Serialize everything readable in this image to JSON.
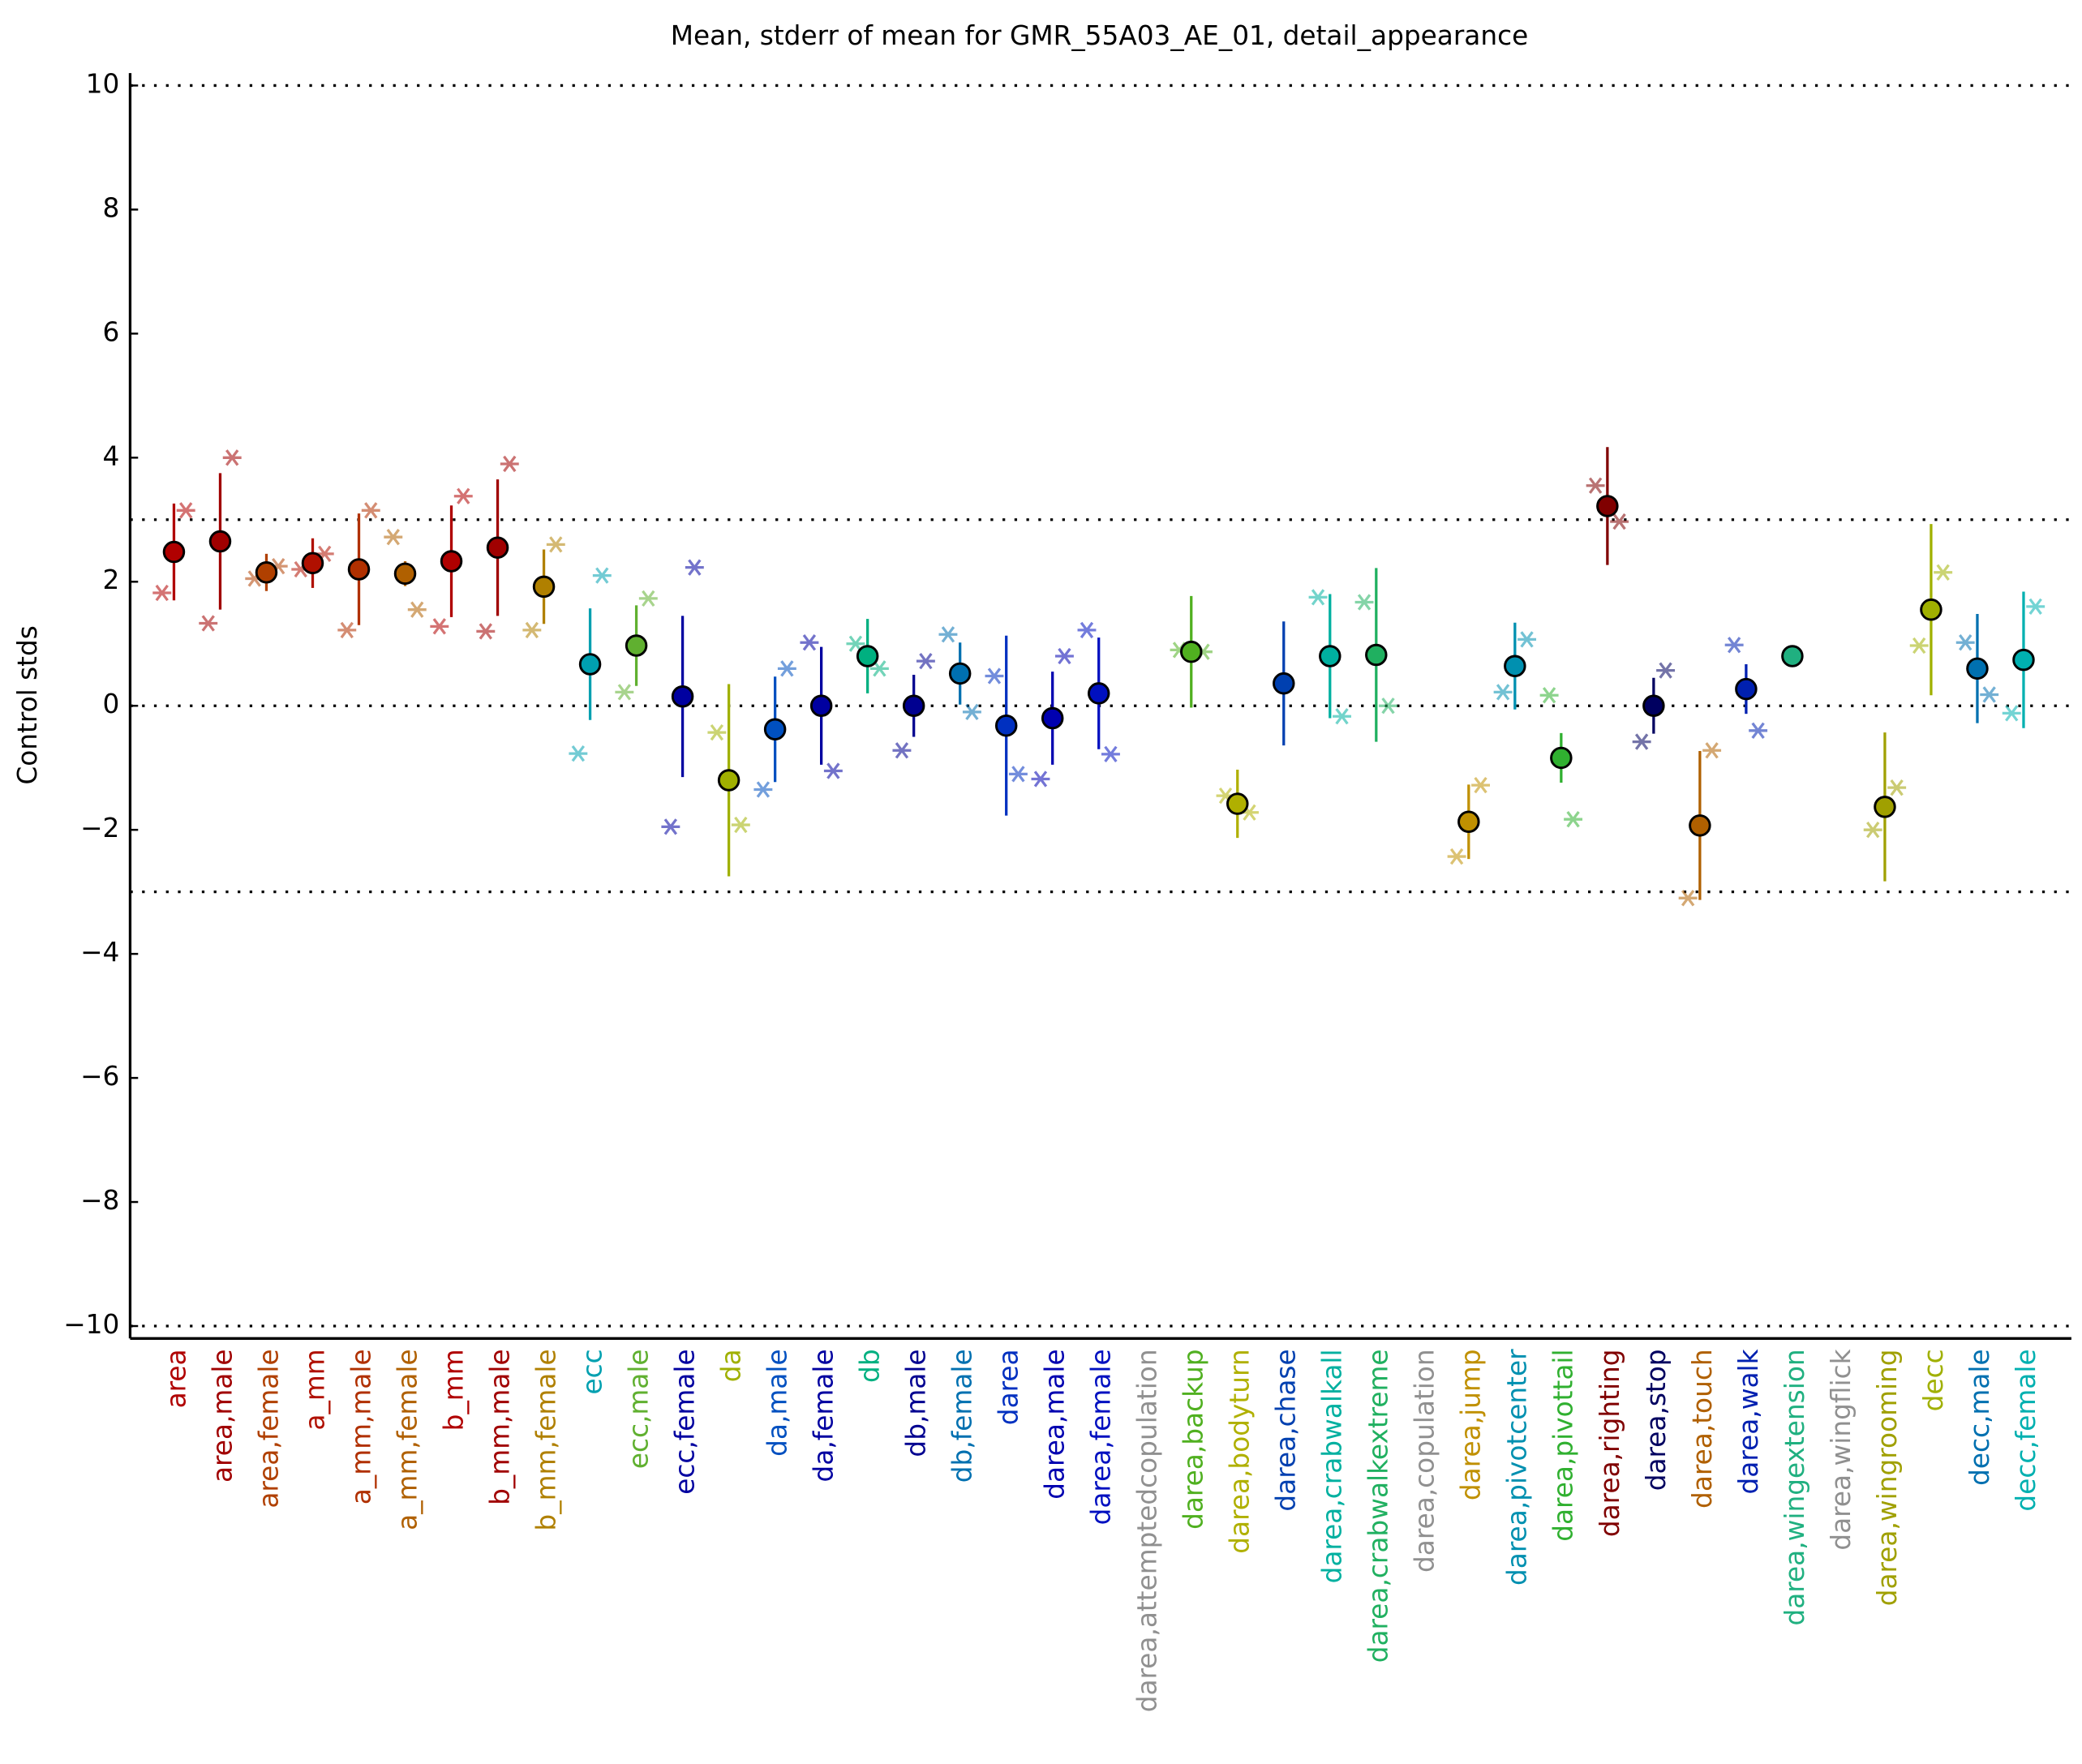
{
  "chart_data": {
    "type": "errorbar",
    "title": "Mean, stderr of mean for GMR_55A03_AE_01, detail_appearance",
    "ylabel": "Control stds",
    "categories": [
      "area",
      "area,male",
      "area,female",
      "a_mm",
      "a_mm,male",
      "a_mm,female",
      "b_mm",
      "b_mm,male",
      "b_mm,female",
      "ecc",
      "ecc,male",
      "ecc,female",
      "da",
      "da,male",
      "da,female",
      "db",
      "db,male",
      "db,female",
      "darea",
      "darea,male",
      "darea,female",
      "darea,attemptedcopulation",
      "darea,backup",
      "darea,bodyturn",
      "darea,chase",
      "darea,crabwalkall",
      "darea,crabwalkextreme",
      "darea,copulation",
      "darea,jump",
      "darea,pivotcenter",
      "darea,pivottail",
      "darea,righting",
      "darea,stop",
      "darea,touch",
      "darea,walk",
      "darea,wingextension",
      "darea,wingflick",
      "darea,wingrooming",
      "decc",
      "decc,male",
      "decc,female"
    ],
    "colors": [
      "#b00000",
      "#a00000",
      "#b04000",
      "#b01000",
      "#b03000",
      "#b06000",
      "#b00000",
      "#a00000",
      "#b08000",
      "#00a0b0",
      "#60b030",
      "#0000a0",
      "#a0b000",
      "#0050c0",
      "#0000a0",
      "#00b080",
      "#000090",
      "#0070b0",
      "#0030c0",
      "#0000b0",
      "#0010c0",
      "#909090",
      "#50b020",
      "#b0b000",
      "#0040b0",
      "#00b0a0",
      "#20b060",
      "#909090",
      "#c09000",
      "#0090b0",
      "#30b030",
      "#800000",
      "#000060",
      "#b06000",
      "#0020b0",
      "#20b080",
      "#909090",
      "#a0a000",
      "#a0b000",
      "#0070b0",
      "#00b0b0"
    ],
    "means": [
      2.48,
      2.65,
      2.15,
      2.3,
      2.2,
      2.13,
      2.33,
      2.55,
      1.92,
      0.67,
      0.97,
      0.15,
      -1.2,
      -0.38,
      0.0,
      0.8,
      0.0,
      0.52,
      -0.32,
      -0.2,
      0.2,
      null,
      0.87,
      -1.58,
      0.36,
      0.8,
      0.82,
      null,
      -1.87,
      0.64,
      -0.84,
      3.22,
      0.0,
      -1.93,
      0.27,
      0.8,
      null,
      -1.63,
      1.55,
      0.6,
      0.74
    ],
    "errors": [
      0.78,
      1.1,
      0.3,
      0.4,
      0.9,
      0.2,
      0.9,
      1.1,
      0.6,
      0.9,
      0.65,
      1.3,
      1.55,
      0.85,
      0.95,
      0.6,
      0.5,
      0.5,
      1.45,
      0.75,
      0.9,
      null,
      0.9,
      0.55,
      1.0,
      1.0,
      1.4,
      null,
      0.6,
      0.7,
      0.4,
      0.95,
      0.45,
      1.2,
      0.4,
      0,
      null,
      1.2,
      1.38,
      0.88,
      1.1
    ],
    "sub_left": [
      1.82,
      1.33,
      2.05,
      2.2,
      1.22,
      2.72,
      1.28,
      1.2,
      1.22,
      -0.77,
      0.22,
      -1.95,
      -0.43,
      -1.35,
      1.02,
      1.0,
      -0.72,
      1.15,
      0.48,
      -1.18,
      1.22,
      null,
      0.9,
      -1.45,
      null,
      1.75,
      1.67,
      null,
      -2.43,
      0.22,
      0.17,
      3.55,
      -0.58,
      -3.1,
      0.98,
      null,
      null,
      -2.0,
      0.97,
      1.02,
      -0.12
    ],
    "sub_right": [
      3.15,
      4.0,
      2.25,
      2.45,
      3.15,
      1.55,
      3.38,
      3.9,
      2.6,
      2.1,
      1.73,
      2.23,
      -1.92,
      0.6,
      -1.05,
      0.6,
      0.72,
      -0.1,
      -1.1,
      0.8,
      -0.78,
      null,
      0.87,
      -1.72,
      null,
      -0.17,
      0.0,
      null,
      -1.28,
      1.07,
      -1.83,
      2.97,
      0.57,
      -0.72,
      -0.4,
      null,
      null,
      -1.32,
      2.15,
      0.18,
      1.6
    ],
    "ylim": [
      -10.2,
      10.2
    ],
    "yticks": [
      {
        "value": -10,
        "label": "−10"
      },
      {
        "value": -8,
        "label": "−8"
      },
      {
        "value": -6,
        "label": "−6"
      },
      {
        "value": -4,
        "label": "−4"
      },
      {
        "value": -2,
        "label": "−2"
      },
      0,
      2,
      4,
      6,
      8,
      10
    ],
    "hlines": [
      -10,
      -3,
      0,
      3,
      10
    ]
  }
}
